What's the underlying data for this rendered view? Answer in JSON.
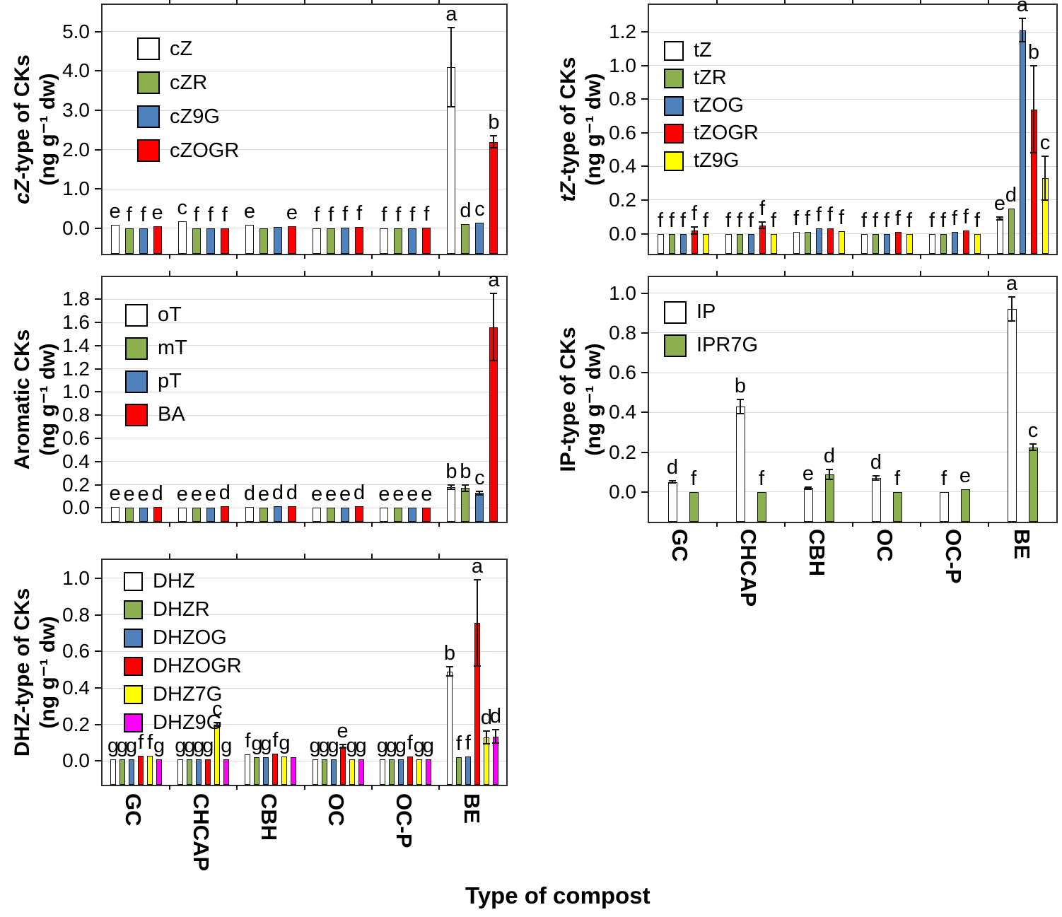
{
  "figure": {
    "xlabel": "Type of compost",
    "categories": [
      "GC",
      "CHCAP",
      "CBH",
      "OC",
      "OC-P",
      "BE"
    ],
    "colors": {
      "white": "#FFFFFF",
      "green": "#8DB04E",
      "blue": "#4F81BD",
      "red": "#FF0000",
      "yellow": "#FFFF00",
      "magenta": "#FF00FF"
    }
  },
  "chart_data": [
    {
      "id": "cz",
      "type": "bar",
      "ylabel_italic": "cZ",
      "ylabel_rest": "-type of CKs",
      "unit": "(ng g⁻¹ dw)",
      "ylim": [
        -0.65,
        5.68
      ],
      "yticks": [
        "0.0",
        "1.0",
        "2.0",
        "3.0",
        "4.0",
        "5.0"
      ],
      "grid": true,
      "legend_position": "top-left",
      "categories": [
        "GC",
        "CHCAP",
        "CBH",
        "OC",
        "OC-P",
        "BE"
      ],
      "series": [
        {
          "name": "cZ",
          "color": "#FFFFFF",
          "values": [
            0.09,
            0.18,
            0.08,
            0.0,
            0.0,
            4.1
          ],
          "errors": [
            0,
            0,
            0,
            0,
            0,
            1.0
          ],
          "letters": [
            "e",
            "c",
            "e",
            "f",
            "f",
            "a"
          ]
        },
        {
          "name": "cZR",
          "color": "#8DB04E",
          "values": [
            0.0,
            0.0,
            0.0,
            0.0,
            0.0,
            0.1
          ],
          "errors": [
            0,
            0,
            0,
            0,
            0,
            0
          ],
          "letters": [
            "f",
            "f",
            "",
            "f",
            "f",
            "d"
          ]
        },
        {
          "name": "cZ9G",
          "color": "#4F81BD",
          "values": [
            0.0,
            0.0,
            0.03,
            0.02,
            0.0,
            0.15
          ],
          "errors": [
            0,
            0,
            0,
            0,
            0,
            0
          ],
          "letters": [
            "f",
            "f",
            "",
            "f",
            "f",
            "c"
          ]
        },
        {
          "name": "cZOGR",
          "color": "#FF0000",
          "values": [
            0.06,
            0.0,
            0.06,
            0.04,
            0.02,
            2.2
          ],
          "errors": [
            0,
            0,
            0,
            0,
            0,
            0.15
          ],
          "letters": [
            "e",
            "f",
            "e",
            "f",
            "f",
            "b"
          ]
        }
      ]
    },
    {
      "id": "tz",
      "type": "bar",
      "ylabel_italic": "tZ",
      "ylabel_rest": "-type of CKs",
      "unit": "(ng g⁻¹ dw)",
      "ylim": [
        -0.12,
        1.36
      ],
      "yticks": [
        "0.0",
        "0.2",
        "0.4",
        "0.6",
        "0.8",
        "1.0",
        "1.2"
      ],
      "grid": true,
      "legend_position": "top-left",
      "categories": [
        "GC",
        "CHCAP",
        "CBH",
        "OC",
        "OC-P",
        "BE"
      ],
      "series": [
        {
          "name": "tZ",
          "color": "#FFFFFF",
          "values": [
            0.0,
            0.0,
            0.01,
            0.0,
            0.0,
            0.09
          ],
          "errors": [
            0,
            0,
            0,
            0,
            0,
            0.01
          ],
          "letters": [
            "f",
            "f",
            "f",
            "f",
            "f",
            "e"
          ]
        },
        {
          "name": "tZR",
          "color": "#8DB04E",
          "values": [
            0.0,
            0.0,
            0.01,
            0.0,
            0.0,
            0.15
          ],
          "errors": [
            0,
            0,
            0,
            0,
            0,
            0
          ],
          "letters": [
            "f",
            "f",
            "f",
            "f",
            "f",
            "d"
          ]
        },
        {
          "name": "tZOG",
          "color": "#4F81BD",
          "values": [
            0.0,
            0.0,
            0.03,
            0.0,
            0.01,
            1.21
          ],
          "errors": [
            0,
            0,
            0,
            0,
            0,
            0.07
          ],
          "letters": [
            "f",
            "f",
            "f",
            "f",
            "f",
            "a"
          ]
        },
        {
          "name": "tZOGR",
          "color": "#FF0000",
          "values": [
            0.02,
            0.05,
            0.03,
            0.01,
            0.02,
            0.74
          ],
          "errors": [
            0.02,
            0.02,
            0,
            0,
            0,
            0.26
          ],
          "letters": [
            "f",
            "f",
            "f",
            "f",
            "f",
            "b"
          ]
        },
        {
          "name": "tZ9G",
          "color": "#FFFF00",
          "values": [
            0.0,
            0.0,
            0.015,
            0.0,
            0.0,
            0.33
          ],
          "errors": [
            0,
            0,
            0,
            0,
            0,
            0.13
          ],
          "letters": [
            "f",
            "f",
            "f",
            "f",
            "f",
            "c"
          ]
        }
      ]
    },
    {
      "id": "aromatic",
      "type": "bar",
      "ylabel_italic": "",
      "ylabel_rest": "Aromatic CKs",
      "unit": "(ng g⁻¹ dw)",
      "ylim": [
        -0.12,
        1.99
      ],
      "yticks": [
        "0.0",
        "0.2",
        "0.4",
        "0.6",
        "0.8",
        "1.0",
        "1.2",
        "1.4",
        "1.6",
        "1.8"
      ],
      "grid": true,
      "legend_position": "top-left",
      "categories": [
        "GC",
        "CHCAP",
        "CBH",
        "OC",
        "OC-P",
        "BE"
      ],
      "series": [
        {
          "name": "oT",
          "color": "#FFFFFF",
          "values": [
            0.01,
            0.0,
            0.01,
            0.0,
            0.0,
            0.18
          ],
          "errors": [
            0,
            0,
            0,
            0,
            0,
            0.02
          ],
          "letters": [
            "e",
            "e",
            "d",
            "e",
            "e",
            "b"
          ]
        },
        {
          "name": "mT",
          "color": "#8DB04E",
          "values": [
            0.0,
            0.0,
            0.0,
            0.0,
            0.0,
            0.17
          ],
          "errors": [
            0,
            0,
            0,
            0,
            0,
            0.03
          ],
          "letters": [
            "e",
            "e",
            "e",
            "e",
            "e",
            "b"
          ]
        },
        {
          "name": "pT",
          "color": "#4F81BD",
          "values": [
            0.0,
            0.0,
            0.015,
            0.0,
            0.0,
            0.13
          ],
          "errors": [
            0,
            0,
            0,
            0,
            0,
            0.015
          ],
          "letters": [
            "e",
            "e",
            "d",
            "e",
            "e",
            "c"
          ]
        },
        {
          "name": "BA",
          "color": "#FF0000",
          "values": [
            0.01,
            0.015,
            0.015,
            0.015,
            0.0,
            1.56
          ],
          "errors": [
            0,
            0,
            0,
            0,
            0,
            0.29
          ],
          "letters": [
            "d",
            "d",
            "d",
            "d",
            "e",
            "a"
          ]
        }
      ]
    },
    {
      "id": "ip",
      "type": "bar",
      "ylabel_italic": "",
      "ylabel_rest": "IP-type of CKs",
      "unit": "(ng g⁻¹ dw)",
      "ylim": [
        -0.15,
        1.08
      ],
      "yticks": [
        "0.0",
        "0.2",
        "0.4",
        "0.6",
        "0.8",
        "1.0"
      ],
      "grid": true,
      "legend_position": "top-left",
      "categories": [
        "GC",
        "CHCAP",
        "CBH",
        "OC",
        "OC-P",
        "BE"
      ],
      "series": [
        {
          "name": "IP",
          "color": "#FFFFFF",
          "values": [
            0.05,
            0.43,
            0.02,
            0.07,
            0.0,
            0.92
          ],
          "errors": [
            0.005,
            0.035,
            0.005,
            0.01,
            0,
            0.06
          ],
          "letters": [
            "d",
            "b",
            "e",
            "d",
            "f",
            "a"
          ]
        },
        {
          "name": "IPR7G",
          "color": "#8DB04E",
          "values": [
            0.0,
            0.0,
            0.09,
            0.0,
            0.015,
            0.225
          ],
          "errors": [
            0,
            0,
            0.025,
            0,
            0,
            0.015
          ],
          "letters": [
            "f",
            "f",
            "d",
            "f",
            "e",
            "c"
          ]
        }
      ]
    },
    {
      "id": "dhz",
      "type": "bar",
      "ylabel_italic": "",
      "ylabel_rest": "DHZ-type of CKs",
      "unit": "(ng g⁻¹ dw)",
      "ylim": [
        -0.13,
        1.1
      ],
      "yticks": [
        "0.0",
        "0.2",
        "0.4",
        "0.6",
        "0.8",
        "1.0"
      ],
      "grid": true,
      "legend_position": "top-left",
      "categories": [
        "GC",
        "CHCAP",
        "CBH",
        "OC",
        "OC-P",
        "BE"
      ],
      "series": [
        {
          "name": "DHZ",
          "color": "#FFFFFF",
          "values": [
            0.01,
            0.01,
            0.035,
            0.01,
            0.01,
            0.49
          ],
          "errors": [
            0,
            0,
            0,
            0,
            0,
            0.025
          ],
          "letters": [
            "g",
            "g",
            "f",
            "g",
            "g",
            "b"
          ]
        },
        {
          "name": "DHZR",
          "color": "#8DB04E",
          "values": [
            0.01,
            0.01,
            0.02,
            0.01,
            0.01,
            0.02
          ],
          "errors": [
            0,
            0,
            0,
            0,
            0,
            0
          ],
          "letters": [
            "g",
            "g",
            "g",
            "g",
            "g",
            "f"
          ]
        },
        {
          "name": "DHZOG",
          "color": "#4F81BD",
          "values": [
            0.01,
            0.01,
            0.02,
            0.01,
            0.01,
            0.025
          ],
          "errors": [
            0,
            0,
            0,
            0,
            0,
            0
          ],
          "letters": [
            "g",
            "g",
            "g",
            "g",
            "g",
            "f"
          ]
        },
        {
          "name": "DHZOGR",
          "color": "#FF0000",
          "values": [
            0.03,
            0.01,
            0.04,
            0.08,
            0.025,
            0.755
          ],
          "errors": [
            0,
            0,
            0,
            0.01,
            0,
            0.235
          ],
          "letters": [
            "f",
            "g",
            "f",
            "e",
            "f",
            "a"
          ]
        },
        {
          "name": "DHZ7G",
          "color": "#FFFF00",
          "values": [
            0.03,
            0.2,
            0.025,
            0.01,
            0.01,
            0.13
          ],
          "errors": [
            0,
            0.01,
            0,
            0,
            0,
            0.035
          ],
          "letters": [
            "f",
            "c",
            "g",
            "g",
            "g",
            "d"
          ]
        },
        {
          "name": "DHZ9G",
          "color": "#FF00FF",
          "values": [
            0.01,
            0.01,
            0.02,
            0.01,
            0.01,
            0.135
          ],
          "errors": [
            0,
            0,
            0,
            0,
            0,
            0.035
          ],
          "letters": [
            "g",
            "g",
            "",
            "g",
            "g",
            "d"
          ]
        }
      ]
    }
  ]
}
